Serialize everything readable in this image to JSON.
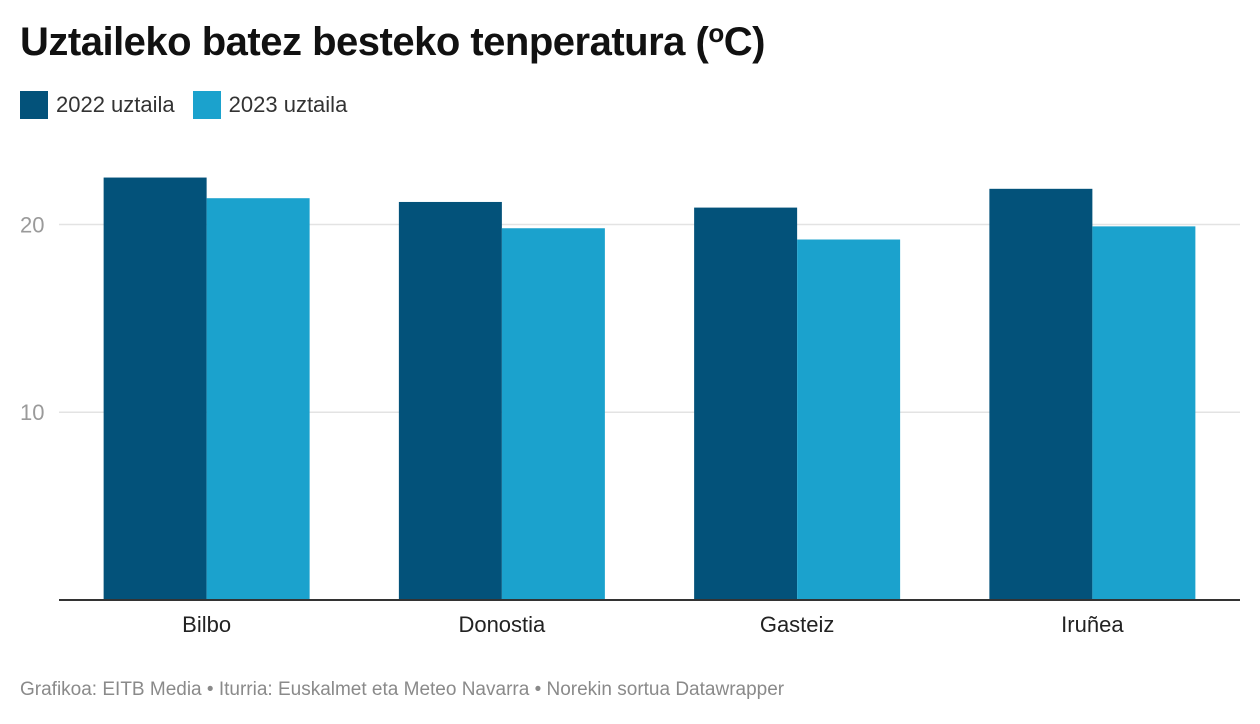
{
  "title": {
    "main": "Uztaileko batez besteko tenperatura (",
    "sup": "o",
    "end": "C)"
  },
  "legend": {
    "items": [
      {
        "label": "2022 uztaila",
        "color": "#03527a"
      },
      {
        "label": "2023 uztaila",
        "color": "#1ba2cd"
      }
    ]
  },
  "chart_data": {
    "type": "bar",
    "title": "Uztaileko batez besteko tenperatura (ºC)",
    "xlabel": "",
    "ylabel": "",
    "categories": [
      "Bilbo",
      "Donostia",
      "Gasteiz",
      "Iruñea"
    ],
    "series": [
      {
        "name": "2022 uztaila",
        "color": "#03527a",
        "values": [
          22.5,
          21.2,
          20.9,
          21.9
        ]
      },
      {
        "name": "2023 uztaila",
        "color": "#1ba2cd",
        "values": [
          21.4,
          19.8,
          19.2,
          19.9
        ]
      }
    ],
    "ylim": [
      0,
      24.5
    ],
    "yticks": [
      10,
      20
    ],
    "grid": true,
    "legend_position": "top-left"
  },
  "footer": {
    "text": "Grafikoa: EITB Media • Iturria: Euskalmet eta Meteo Navarra • Norekin sortua Datawrapper"
  }
}
